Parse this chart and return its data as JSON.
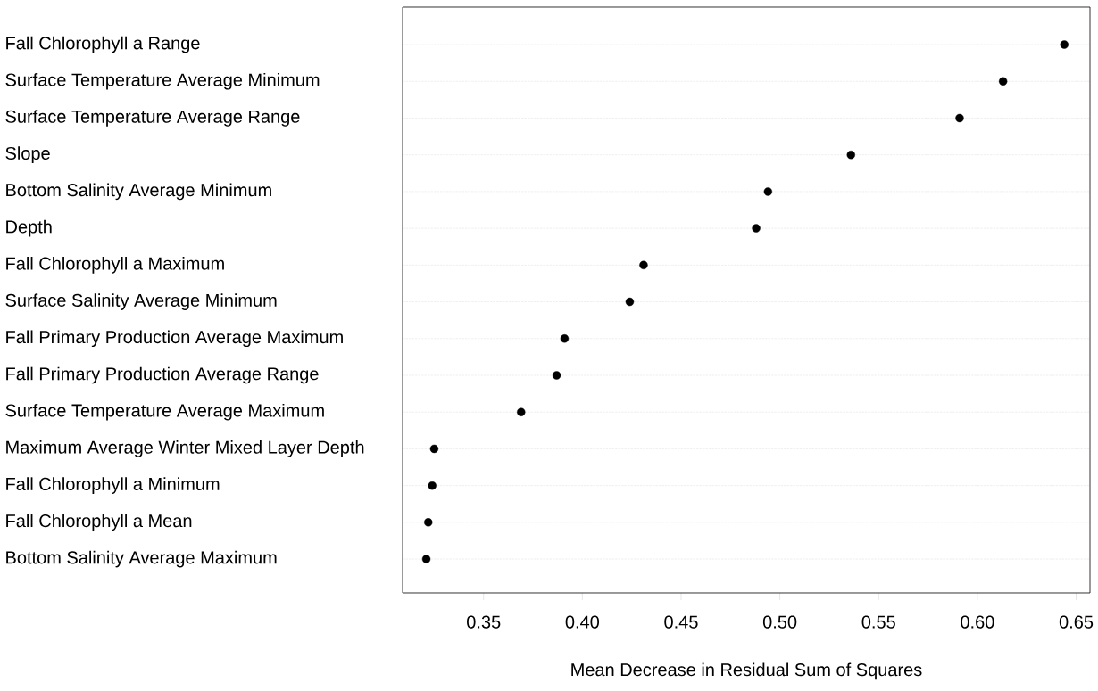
{
  "chart_data": {
    "type": "scatter",
    "orientation": "horizontal",
    "xlabel": "Mean Decrease in Residual Sum of Squares",
    "categories": [
      "Fall Chlorophyll a Range",
      "Surface Temperature Average Minimum",
      "Surface Temperature Average Range",
      "Slope",
      "Bottom Salinity Average Minimum",
      "Depth",
      "Fall Chlorophyll a Maximum",
      "Surface Salinity Average Minimum",
      "Fall Primary Production Average Maximum",
      "Fall Primary Production Average Range",
      "Surface Temperature Average Maximum",
      "Maximum Average Winter Mixed Layer Depth",
      "Fall Chlorophyll a Minimum",
      "Fall Chlorophyll a Mean",
      "Bottom Salinity Average Maximum"
    ],
    "values": [
      0.644,
      0.613,
      0.591,
      0.536,
      0.494,
      0.488,
      0.431,
      0.424,
      0.391,
      0.387,
      0.369,
      0.325,
      0.324,
      0.322,
      0.321
    ],
    "color": "#000000",
    "marker": "circle",
    "grid": "y",
    "xlim": [
      0.309,
      0.657
    ],
    "xticks": [
      0.35,
      {
        "value": 0.4,
        "label": "0.40"
      },
      0.45,
      {
        "value": 0.5,
        "label": "0.50"
      },
      0.55,
      {
        "value": 0.6,
        "label": "0.60"
      },
      0.65
    ]
  }
}
